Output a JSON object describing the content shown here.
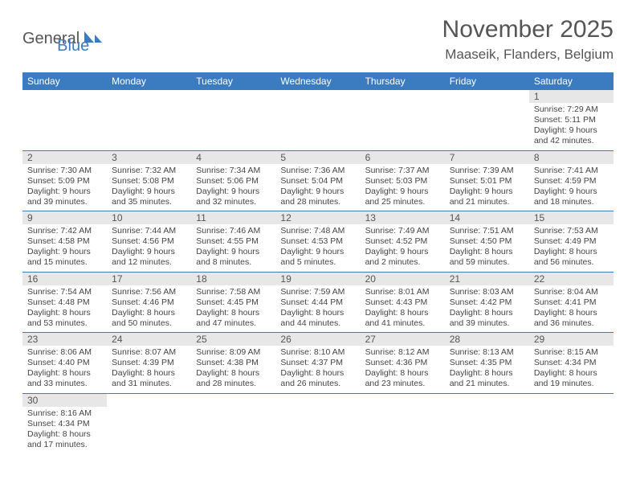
{
  "logo": {
    "main": "General",
    "accent": "Blue"
  },
  "title": "November 2025",
  "location": "Maaseik, Flanders, Belgium",
  "colors": {
    "header_bg": "#3b7bbf",
    "header_fg": "#ffffff",
    "daynum_bg": "#e7e7e7",
    "text": "#444444",
    "row_divider": "#3b7bbf"
  },
  "typography": {
    "title_fontsize": 30,
    "location_fontsize": 17,
    "weekday_fontsize": 12,
    "daynum_fontsize": 12,
    "cell_fontsize": 10.5
  },
  "weekdays": [
    "Sunday",
    "Monday",
    "Tuesday",
    "Wednesday",
    "Thursday",
    "Friday",
    "Saturday"
  ],
  "cells": [
    [
      null,
      null,
      null,
      null,
      null,
      null,
      {
        "n": "1",
        "sunrise": "Sunrise: 7:29 AM",
        "sunset": "Sunset: 5:11 PM",
        "daylight": "Daylight: 9 hours and 42 minutes."
      }
    ],
    [
      {
        "n": "2",
        "sunrise": "Sunrise: 7:30 AM",
        "sunset": "Sunset: 5:09 PM",
        "daylight": "Daylight: 9 hours and 39 minutes."
      },
      {
        "n": "3",
        "sunrise": "Sunrise: 7:32 AM",
        "sunset": "Sunset: 5:08 PM",
        "daylight": "Daylight: 9 hours and 35 minutes."
      },
      {
        "n": "4",
        "sunrise": "Sunrise: 7:34 AM",
        "sunset": "Sunset: 5:06 PM",
        "daylight": "Daylight: 9 hours and 32 minutes."
      },
      {
        "n": "5",
        "sunrise": "Sunrise: 7:36 AM",
        "sunset": "Sunset: 5:04 PM",
        "daylight": "Daylight: 9 hours and 28 minutes."
      },
      {
        "n": "6",
        "sunrise": "Sunrise: 7:37 AM",
        "sunset": "Sunset: 5:03 PM",
        "daylight": "Daylight: 9 hours and 25 minutes."
      },
      {
        "n": "7",
        "sunrise": "Sunrise: 7:39 AM",
        "sunset": "Sunset: 5:01 PM",
        "daylight": "Daylight: 9 hours and 21 minutes."
      },
      {
        "n": "8",
        "sunrise": "Sunrise: 7:41 AM",
        "sunset": "Sunset: 4:59 PM",
        "daylight": "Daylight: 9 hours and 18 minutes."
      }
    ],
    [
      {
        "n": "9",
        "sunrise": "Sunrise: 7:42 AM",
        "sunset": "Sunset: 4:58 PM",
        "daylight": "Daylight: 9 hours and 15 minutes."
      },
      {
        "n": "10",
        "sunrise": "Sunrise: 7:44 AM",
        "sunset": "Sunset: 4:56 PM",
        "daylight": "Daylight: 9 hours and 12 minutes."
      },
      {
        "n": "11",
        "sunrise": "Sunrise: 7:46 AM",
        "sunset": "Sunset: 4:55 PM",
        "daylight": "Daylight: 9 hours and 8 minutes."
      },
      {
        "n": "12",
        "sunrise": "Sunrise: 7:48 AM",
        "sunset": "Sunset: 4:53 PM",
        "daylight": "Daylight: 9 hours and 5 minutes."
      },
      {
        "n": "13",
        "sunrise": "Sunrise: 7:49 AM",
        "sunset": "Sunset: 4:52 PM",
        "daylight": "Daylight: 9 hours and 2 minutes."
      },
      {
        "n": "14",
        "sunrise": "Sunrise: 7:51 AM",
        "sunset": "Sunset: 4:50 PM",
        "daylight": "Daylight: 8 hours and 59 minutes."
      },
      {
        "n": "15",
        "sunrise": "Sunrise: 7:53 AM",
        "sunset": "Sunset: 4:49 PM",
        "daylight": "Daylight: 8 hours and 56 minutes."
      }
    ],
    [
      {
        "n": "16",
        "sunrise": "Sunrise: 7:54 AM",
        "sunset": "Sunset: 4:48 PM",
        "daylight": "Daylight: 8 hours and 53 minutes."
      },
      {
        "n": "17",
        "sunrise": "Sunrise: 7:56 AM",
        "sunset": "Sunset: 4:46 PM",
        "daylight": "Daylight: 8 hours and 50 minutes."
      },
      {
        "n": "18",
        "sunrise": "Sunrise: 7:58 AM",
        "sunset": "Sunset: 4:45 PM",
        "daylight": "Daylight: 8 hours and 47 minutes."
      },
      {
        "n": "19",
        "sunrise": "Sunrise: 7:59 AM",
        "sunset": "Sunset: 4:44 PM",
        "daylight": "Daylight: 8 hours and 44 minutes."
      },
      {
        "n": "20",
        "sunrise": "Sunrise: 8:01 AM",
        "sunset": "Sunset: 4:43 PM",
        "daylight": "Daylight: 8 hours and 41 minutes."
      },
      {
        "n": "21",
        "sunrise": "Sunrise: 8:03 AM",
        "sunset": "Sunset: 4:42 PM",
        "daylight": "Daylight: 8 hours and 39 minutes."
      },
      {
        "n": "22",
        "sunrise": "Sunrise: 8:04 AM",
        "sunset": "Sunset: 4:41 PM",
        "daylight": "Daylight: 8 hours and 36 minutes."
      }
    ],
    [
      {
        "n": "23",
        "sunrise": "Sunrise: 8:06 AM",
        "sunset": "Sunset: 4:40 PM",
        "daylight": "Daylight: 8 hours and 33 minutes."
      },
      {
        "n": "24",
        "sunrise": "Sunrise: 8:07 AM",
        "sunset": "Sunset: 4:39 PM",
        "daylight": "Daylight: 8 hours and 31 minutes."
      },
      {
        "n": "25",
        "sunrise": "Sunrise: 8:09 AM",
        "sunset": "Sunset: 4:38 PM",
        "daylight": "Daylight: 8 hours and 28 minutes."
      },
      {
        "n": "26",
        "sunrise": "Sunrise: 8:10 AM",
        "sunset": "Sunset: 4:37 PM",
        "daylight": "Daylight: 8 hours and 26 minutes."
      },
      {
        "n": "27",
        "sunrise": "Sunrise: 8:12 AM",
        "sunset": "Sunset: 4:36 PM",
        "daylight": "Daylight: 8 hours and 23 minutes."
      },
      {
        "n": "28",
        "sunrise": "Sunrise: 8:13 AM",
        "sunset": "Sunset: 4:35 PM",
        "daylight": "Daylight: 8 hours and 21 minutes."
      },
      {
        "n": "29",
        "sunrise": "Sunrise: 8:15 AM",
        "sunset": "Sunset: 4:34 PM",
        "daylight": "Daylight: 8 hours and 19 minutes."
      }
    ],
    [
      {
        "n": "30",
        "sunrise": "Sunrise: 8:16 AM",
        "sunset": "Sunset: 4:34 PM",
        "daylight": "Daylight: 8 hours and 17 minutes."
      },
      null,
      null,
      null,
      null,
      null,
      null
    ]
  ]
}
